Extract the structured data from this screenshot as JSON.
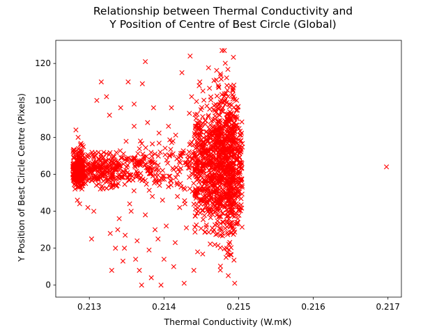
{
  "chart_data": {
    "type": "scatter",
    "title_lines": [
      "Relationship between Thermal Conductivity and",
      "Y Position of Centre of Best Circle (Global)"
    ],
    "xlabel": "Thermal Conductivity (W.mK)",
    "ylabel": "Y Position of Best Circle Centre (Pixels)",
    "xlim": [
      0.21255,
      0.21718
    ],
    "ylim": [
      -6.5,
      132.5
    ],
    "x_ticks": [
      0.213,
      0.214,
      0.215,
      0.216,
      0.217
    ],
    "x_tick_labels": [
      "0.213",
      "0.214",
      "0.215",
      "0.216",
      "0.217"
    ],
    "y_ticks": [
      0,
      20,
      40,
      60,
      80,
      100,
      120
    ],
    "y_tick_labels": [
      "0",
      "20",
      "40",
      "60",
      "80",
      "100",
      "120"
    ],
    "grid": false,
    "marker": "x",
    "color": "#ff0000",
    "series": [
      {
        "points": [
          [
            0.21282,
            84
          ],
          [
            0.21285,
            80
          ],
          [
            0.21288,
            76
          ],
          [
            0.21284,
            46
          ],
          [
            0.21287,
            44
          ],
          [
            0.2128,
            73
          ],
          [
            0.21286,
            70
          ],
          [
            0.21283,
            56
          ],
          [
            0.2129,
            52
          ],
          [
            0.21278,
            64
          ],
          [
            0.21298,
            42
          ],
          [
            0.21303,
            25
          ],
          [
            0.21306,
            40
          ],
          [
            0.2131,
            100
          ],
          [
            0.21316,
            110
          ],
          [
            0.21323,
            102
          ],
          [
            0.21327,
            92
          ],
          [
            0.2133,
            8
          ],
          [
            0.21335,
            20
          ],
          [
            0.21338,
            30
          ],
          [
            0.21342,
            96
          ],
          [
            0.21345,
            13
          ],
          [
            0.21348,
            27
          ],
          [
            0.21354,
            44
          ],
          [
            0.2136,
            98
          ],
          [
            0.21364,
            24
          ],
          [
            0.21367,
            8
          ],
          [
            0.21352,
            110
          ],
          [
            0.2136,
            86
          ],
          [
            0.21347,
            20
          ],
          [
            0.21328,
            28
          ],
          [
            0.2134,
            36
          ],
          [
            0.21356,
            40
          ],
          [
            0.21362,
            14
          ],
          [
            0.2137,
            0
          ],
          [
            0.21375,
            121
          ],
          [
            0.21371,
            109
          ],
          [
            0.21378,
            88
          ],
          [
            0.2138,
            19
          ],
          [
            0.21383,
            4
          ],
          [
            0.21386,
            96
          ],
          [
            0.21388,
            30
          ],
          [
            0.21392,
            25
          ],
          [
            0.21396,
            0
          ],
          [
            0.214,
            14
          ],
          [
            0.21375,
            38
          ],
          [
            0.21394,
            54
          ],
          [
            0.21398,
            46
          ],
          [
            0.21403,
            32
          ],
          [
            0.21406,
            86
          ],
          [
            0.2141,
            96
          ],
          [
            0.21413,
            10
          ],
          [
            0.21415,
            23
          ],
          [
            0.21418,
            48
          ],
          [
            0.21421,
            42
          ],
          [
            0.21424,
            115
          ],
          [
            0.21427,
            1
          ],
          [
            0.2143,
            31
          ],
          [
            0.21434,
            93
          ],
          [
            0.21437,
            102
          ],
          [
            0.2144,
            8
          ],
          [
            0.21442,
            86
          ],
          [
            0.21445,
            18
          ],
          [
            0.21448,
            110
          ],
          [
            0.21435,
            124
          ],
          [
            0.21385,
            59
          ],
          [
            0.21395,
            72
          ],
          [
            0.21405,
            66
          ],
          [
            0.21412,
            78
          ],
          [
            0.21422,
            55
          ],
          [
            0.21432,
            70
          ],
          [
            0.21438,
            64
          ],
          [
            0.21444,
            57
          ],
          [
            0.21447,
            73
          ],
          [
            0.21428,
            44
          ]
        ]
      }
    ],
    "outlier_point": [
      0.21698,
      64
    ]
  }
}
